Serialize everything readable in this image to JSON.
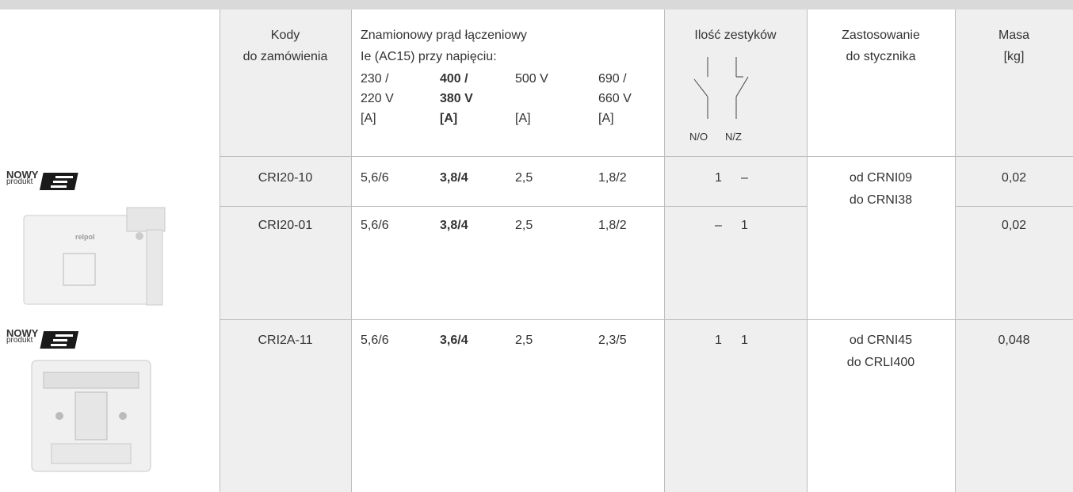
{
  "table": {
    "headers": {
      "codes": [
        "Kody",
        "do zamówienia"
      ],
      "current": {
        "title": "Znamionowy prąd łączeniowy",
        "subtitle": "Ie (AC15) przy napięciu:",
        "voltages": [
          [
            "230 /",
            "220 V",
            "[A]"
          ],
          [
            "400 /",
            "380 V",
            "[A]"
          ],
          [
            "500 V",
            "[A]"
          ],
          [
            "690 /",
            "660 V",
            "[A]"
          ]
        ]
      },
      "contacts": {
        "title": "Ilość zestyków",
        "labels": [
          "N/O",
          "N/Z"
        ]
      },
      "application": [
        "Zastosowanie",
        "do stycznika"
      ],
      "mass": [
        "Masa",
        "[kg]"
      ]
    },
    "badges": [
      {
        "line1": "NOWY",
        "line2": "produkt"
      },
      {
        "line1": "NOWY",
        "line2": "produkt"
      }
    ],
    "rows": [
      {
        "code": "CRI20-10",
        "currents": [
          "5,6/6",
          "3,8/4",
          "2,5",
          "1,8/2"
        ],
        "contacts": [
          "1",
          "–"
        ],
        "mass": "0,02"
      },
      {
        "code": "CRI20-01",
        "currents": [
          "5,6/6",
          "3,8/4",
          "2,5",
          "1,8/2"
        ],
        "contacts": [
          "–",
          "1"
        ],
        "mass": "0,02"
      },
      {
        "code": "CRI2A-11",
        "currents": [
          "5,6/6",
          "3,6/4",
          "2,5",
          "2,3/5"
        ],
        "contacts": [
          "1",
          "1"
        ],
        "mass": "0,048"
      }
    ],
    "applications": [
      [
        "od CRNI09",
        "do CRNI38"
      ],
      [
        "od CRNI45",
        "do CRLI400"
      ]
    ]
  }
}
